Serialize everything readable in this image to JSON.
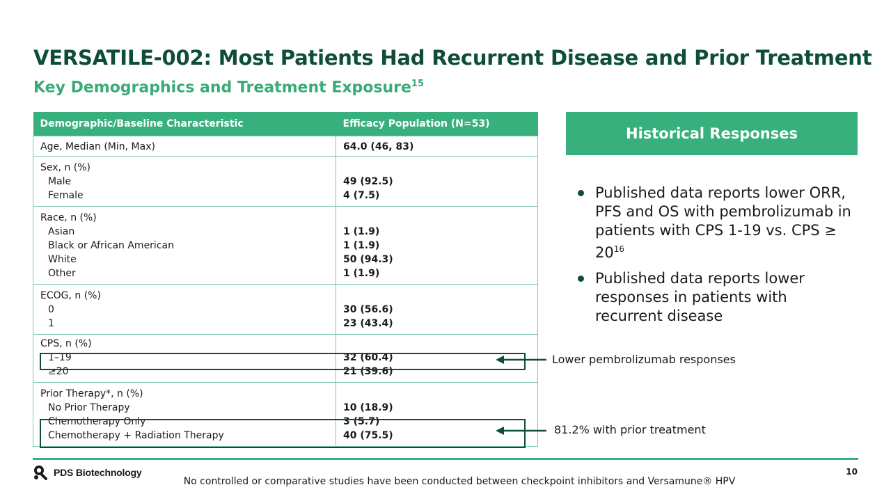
{
  "header": {
    "title": "VERSATILE-002: Most Patients Had Recurrent Disease and Prior Treatment",
    "subtitle": "Key Demographics and Treatment Exposure",
    "subtitle_ref": "15"
  },
  "table": {
    "headers": [
      "Demographic/Baseline Characteristic",
      "Efficacy Population (N=53)"
    ],
    "age": {
      "label": "Age, Median (Min, Max)",
      "value": "64.0 (46, 83)"
    },
    "sex": {
      "label": "Sex, n (%)",
      "rows": [
        {
          "label": "Male",
          "value": "49 (92.5)"
        },
        {
          "label": "Female",
          "value": "4 (7.5)"
        }
      ]
    },
    "race": {
      "label": "Race, n (%)",
      "rows": [
        {
          "label": "Asian",
          "value": "1 (1.9)"
        },
        {
          "label": "Black or African American",
          "value": "1 (1.9)"
        },
        {
          "label": "White",
          "value": "50 (94.3)"
        },
        {
          "label": "Other",
          "value": "1 (1.9)"
        }
      ]
    },
    "ecog": {
      "label": "ECOG, n (%)",
      "rows": [
        {
          "label": "0",
          "value": "30 (56.6)"
        },
        {
          "label": "1",
          "value": "23 (43.4)"
        }
      ]
    },
    "cps": {
      "label": "CPS, n (%)",
      "rows": [
        {
          "label": "1–19",
          "value": "32 (60.4)"
        },
        {
          "label": "≥20",
          "value": "21 (39.6)"
        }
      ]
    },
    "prior": {
      "label": "Prior Therapy*, n (%)",
      "rows": [
        {
          "label": "No Prior Therapy",
          "value": "10 (18.9)"
        },
        {
          "label": "Chemotherapy Only",
          "value": "3 (5.7)"
        },
        {
          "label": "Chemotherapy + Radiation Therapy",
          "value": "40 (75.5)"
        }
      ]
    }
  },
  "callouts": {
    "cps": "Lower pembrolizumab responses",
    "prior": "81.2% with prior treatment"
  },
  "historical": {
    "title": "Historical Responses",
    "bullet1": "Published data reports lower ORR, PFS and OS with pembrolizumab in patients with CPS 1-19 vs. CPS ≥ 20",
    "bullet1_ref": "16",
    "bullet2": "Published data reports lower responses in patients with recurrent disease"
  },
  "footer": {
    "logo_text": "PDS Biotechnology",
    "disclaimer": "No controlled or comparative studies have been conducted between checkpoint inhibitors and Versamune® HPV",
    "page_number": "10"
  },
  "colors": {
    "dark_green": "#0e4d3a",
    "accent_green": "#37b07e",
    "subtitle_green": "#3aaa78"
  }
}
